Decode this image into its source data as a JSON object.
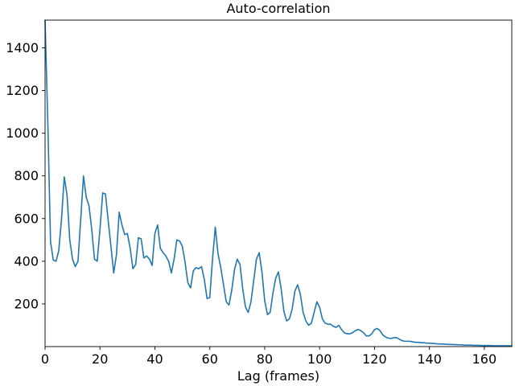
{
  "chart_data": {
    "type": "line",
    "title": "Auto-correlation",
    "xlabel": "Lag (frames)",
    "ylabel": "",
    "xlim": [
      0,
      170
    ],
    "ylim": [
      0,
      1530
    ],
    "xticks": [
      0,
      20,
      40,
      60,
      80,
      100,
      120,
      140,
      160
    ],
    "yticks": [
      200,
      400,
      600,
      800,
      1000,
      1200,
      1400
    ],
    "grid": false,
    "line_color": "#1f77b4",
    "series": [
      {
        "x": [
          0,
          1,
          2,
          3,
          4,
          5,
          6,
          7,
          8,
          9,
          10,
          11,
          12,
          13,
          14,
          15,
          16,
          17,
          18,
          19,
          20,
          21,
          22,
          23,
          24,
          25,
          26,
          27,
          28,
          29,
          30,
          31,
          32,
          33,
          34,
          35,
          36,
          37,
          38,
          39,
          40,
          41,
          42,
          43,
          44,
          45,
          46,
          47,
          48,
          49,
          50,
          51,
          52,
          53,
          54,
          55,
          56,
          57,
          58,
          59,
          60,
          61,
          62,
          63,
          64,
          65,
          66,
          67,
          68,
          69,
          70,
          71,
          72,
          73,
          74,
          75,
          76,
          77,
          78,
          79,
          80,
          81,
          82,
          83,
          84,
          85,
          86,
          87,
          88,
          89,
          90,
          91,
          92,
          93,
          94,
          95,
          96,
          97,
          98,
          99,
          100,
          101,
          102,
          103,
          104,
          105,
          106,
          107,
          108,
          109,
          110,
          111,
          112,
          113,
          114,
          115,
          116,
          117,
          118,
          119,
          120,
          121,
          122,
          123,
          124,
          125,
          126,
          127,
          128,
          129,
          130,
          131,
          132,
          133,
          134,
          135,
          136,
          137,
          138,
          139,
          140,
          141,
          142,
          143,
          144,
          145,
          146,
          147,
          148,
          149,
          150,
          151,
          152,
          153,
          154,
          155,
          156,
          157,
          158,
          159,
          160,
          161,
          162,
          163,
          164,
          165,
          166,
          167,
          168,
          169,
          170
        ],
        "values": [
          1530,
          1050,
          490,
          405,
          400,
          450,
          600,
          795,
          710,
          500,
          410,
          375,
          400,
          600,
          800,
          700,
          660,
          550,
          410,
          400,
          550,
          720,
          715,
          590,
          470,
          345,
          430,
          630,
          570,
          525,
          530,
          460,
          365,
          385,
          510,
          505,
          415,
          425,
          410,
          380,
          530,
          570,
          460,
          440,
          425,
          400,
          345,
          410,
          500,
          495,
          470,
          395,
          300,
          275,
          355,
          370,
          365,
          375,
          315,
          225,
          230,
          410,
          560,
          435,
          370,
          290,
          210,
          195,
          265,
          360,
          410,
          385,
          270,
          185,
          160,
          210,
          310,
          410,
          440,
          350,
          215,
          150,
          160,
          250,
          320,
          350,
          270,
          165,
          120,
          130,
          175,
          260,
          290,
          245,
          160,
          120,
          100,
          110,
          160,
          210,
          185,
          130,
          110,
          105,
          105,
          95,
          90,
          100,
          80,
          65,
          60,
          60,
          65,
          75,
          80,
          75,
          65,
          50,
          50,
          60,
          80,
          85,
          75,
          55,
          45,
          40,
          38,
          42,
          42,
          35,
          28,
          25,
          25,
          25,
          22,
          20,
          20,
          18,
          18,
          16,
          16,
          15,
          14,
          13,
          12,
          12,
          11,
          10,
          10,
          9,
          9,
          8,
          8,
          7,
          7,
          7,
          6,
          6,
          6,
          5,
          5,
          5,
          5,
          4,
          4,
          4,
          4,
          4,
          4,
          4,
          3
        ]
      }
    ]
  }
}
